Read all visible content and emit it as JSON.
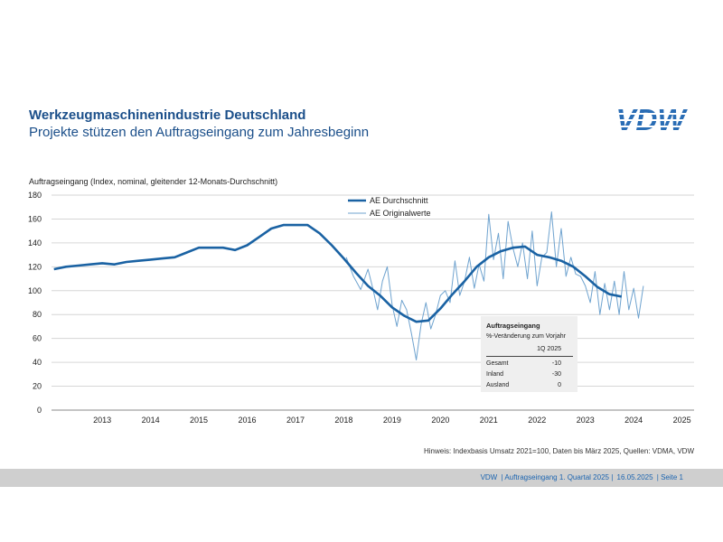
{
  "header": {
    "title": "Werkzeugmaschinenindustrie Deutschland",
    "subtitle": "Projekte stützen den Auftragseingang zum Jahresbeginn",
    "logo_text": "VDW"
  },
  "colors": {
    "brand": "#1b4f8a",
    "avg_line": "#1a62a3",
    "orig_line": "#6fa3cf",
    "grid": "#d6d6d6"
  },
  "chart_data": {
    "type": "line",
    "ylabel": "Auftragseingang (Index, nominal, gleitender 12-Monats-Durchschnitt)",
    "ylim": [
      0,
      180
    ],
    "y_ticks": [
      0,
      20,
      40,
      60,
      80,
      100,
      120,
      140,
      160,
      180
    ],
    "x_range": [
      2012.45,
      2025.75
    ],
    "year_labels": [
      "2013",
      "2014",
      "2015",
      "2016",
      "2017",
      "2018",
      "2019",
      "2020",
      "2021",
      "2022",
      "2023",
      "2024",
      "2025"
    ],
    "grid": "horizontal",
    "legend_position": "top-center",
    "series": [
      {
        "name": "AE Durchschnitt",
        "style": "thick",
        "x": [
          2012.5,
          2012.75,
          2013.0,
          2013.25,
          2013.5,
          2013.75,
          2014.0,
          2014.25,
          2014.5,
          2014.75,
          2015.0,
          2015.25,
          2015.5,
          2015.75,
          2016.0,
          2016.25,
          2016.5,
          2016.75,
          2017.0,
          2017.25,
          2017.5,
          2017.75,
          2018.0,
          2018.25,
          2018.5,
          2018.75,
          2019.0,
          2019.25,
          2019.5,
          2019.75,
          2020.0,
          2020.25,
          2020.5,
          2020.75,
          2021.0,
          2021.25,
          2021.5,
          2021.75,
          2022.0,
          2022.25,
          2022.5,
          2022.75,
          2023.0,
          2023.25,
          2023.5,
          2023.75,
          2024.0,
          2024.25
        ],
        "values": [
          118,
          120,
          121,
          122,
          123,
          122,
          124,
          125,
          126,
          127,
          128,
          132,
          136,
          136,
          136,
          134,
          138,
          145,
          152,
          155,
          155,
          155,
          148,
          138,
          127,
          115,
          104,
          96,
          86,
          79,
          74,
          75,
          85,
          97,
          108,
          120,
          128,
          133,
          136,
          137,
          130,
          128,
          125,
          120,
          112,
          103,
          97,
          95
        ]
      },
      {
        "name": "AE Originalwerte",
        "style": "thin",
        "x": [
          2018.55,
          2018.7,
          2018.85,
          2019.0,
          2019.1,
          2019.2,
          2019.3,
          2019.4,
          2019.5,
          2019.6,
          2019.7,
          2019.8,
          2019.9,
          2020.0,
          2020.1,
          2020.2,
          2020.3,
          2020.4,
          2020.5,
          2020.6,
          2020.7,
          2020.8,
          2020.9,
          2021.0,
          2021.1,
          2021.2,
          2021.3,
          2021.4,
          2021.5,
          2021.6,
          2021.7,
          2021.8,
          2021.9,
          2022.0,
          2022.1,
          2022.2,
          2022.3,
          2022.4,
          2022.5,
          2022.6,
          2022.7,
          2022.8,
          2022.9,
          2023.0,
          2023.1,
          2023.2,
          2023.3,
          2023.4,
          2023.5,
          2023.6,
          2023.7,
          2023.8,
          2023.9,
          2024.0,
          2024.1,
          2024.2,
          2024.3,
          2024.4,
          2024.5,
          2024.6,
          2024.7
        ],
        "values": [
          128,
          112,
          101,
          118,
          102,
          84,
          108,
          120,
          88,
          70,
          92,
          84,
          64,
          42,
          72,
          90,
          68,
          80,
          96,
          100,
          90,
          125,
          96,
          108,
          128,
          102,
          122,
          108,
          164,
          126,
          148,
          110,
          158,
          136,
          120,
          140,
          110,
          150,
          104,
          128,
          132,
          166,
          120,
          152,
          112,
          128,
          114,
          112,
          104,
          90,
          116,
          80,
          106,
          84,
          108,
          80,
          116,
          84,
          102,
          77,
          104
        ]
      }
    ]
  },
  "infobox": {
    "title": "Auftragseingang",
    "subtitle": "%-Veränderung zum Vorjahr",
    "column": "1Q 2025",
    "rows": [
      {
        "label": "Gesamt",
        "value": "-10"
      },
      {
        "label": "Inland",
        "value": "-30"
      },
      {
        "label": "Ausland",
        "value": "0"
      }
    ]
  },
  "hint": "Hinweis: Indexbasis Umsatz 2021=100, Daten bis März 2025, Quellen: VDMA, VDW",
  "footer": {
    "org": "VDW",
    "doc": "| Auftragseingang 1. Quartal 2025 |",
    "date": "16.05.2025",
    "page": "| Seite 1"
  }
}
